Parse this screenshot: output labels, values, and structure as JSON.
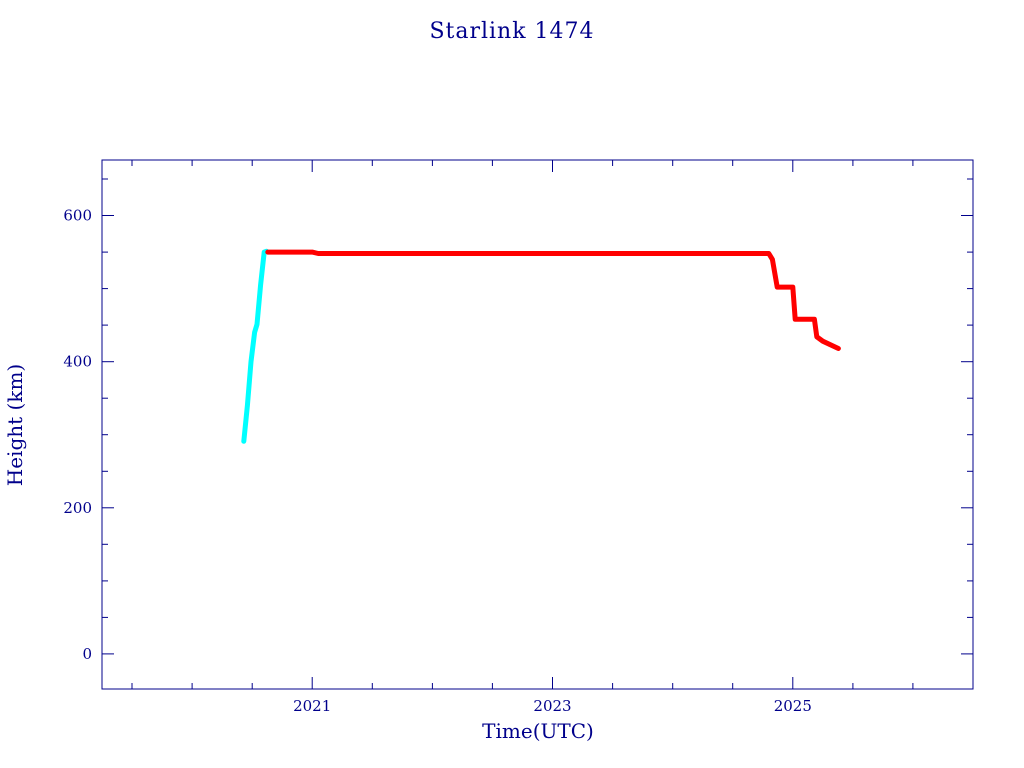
{
  "chart_data": {
    "type": "line",
    "title": "Starlink 1474",
    "xlabel": "Time(UTC)",
    "ylabel": "Height (km)",
    "xlim": [
      2019.25,
      2026.5
    ],
    "ylim": [
      -48,
      676
    ],
    "x_ticks": [
      2021,
      2023,
      2025
    ],
    "y_ticks": [
      0,
      200,
      400,
      600
    ],
    "grid": false,
    "colors": {
      "axis": "#00008b"
    },
    "series": [
      {
        "color": "#00ffff",
        "points": [
          [
            2020.43,
            291
          ],
          [
            2020.46,
            340
          ],
          [
            2020.49,
            400
          ],
          [
            2020.52,
            440
          ],
          [
            2020.54,
            451
          ],
          [
            2020.57,
            505
          ],
          [
            2020.6,
            550
          ],
          [
            2020.62,
            551
          ]
        ]
      },
      {
        "color": "#ff0000",
        "points": [
          [
            2020.63,
            550
          ],
          [
            2021.0,
            550
          ],
          [
            2021.05,
            548
          ],
          [
            2024.8,
            548
          ],
          [
            2024.83,
            540
          ],
          [
            2024.87,
            502
          ],
          [
            2025.0,
            502
          ],
          [
            2025.02,
            458
          ],
          [
            2025.18,
            458
          ],
          [
            2025.2,
            434
          ],
          [
            2025.25,
            428
          ],
          [
            2025.38,
            418
          ]
        ]
      }
    ]
  }
}
